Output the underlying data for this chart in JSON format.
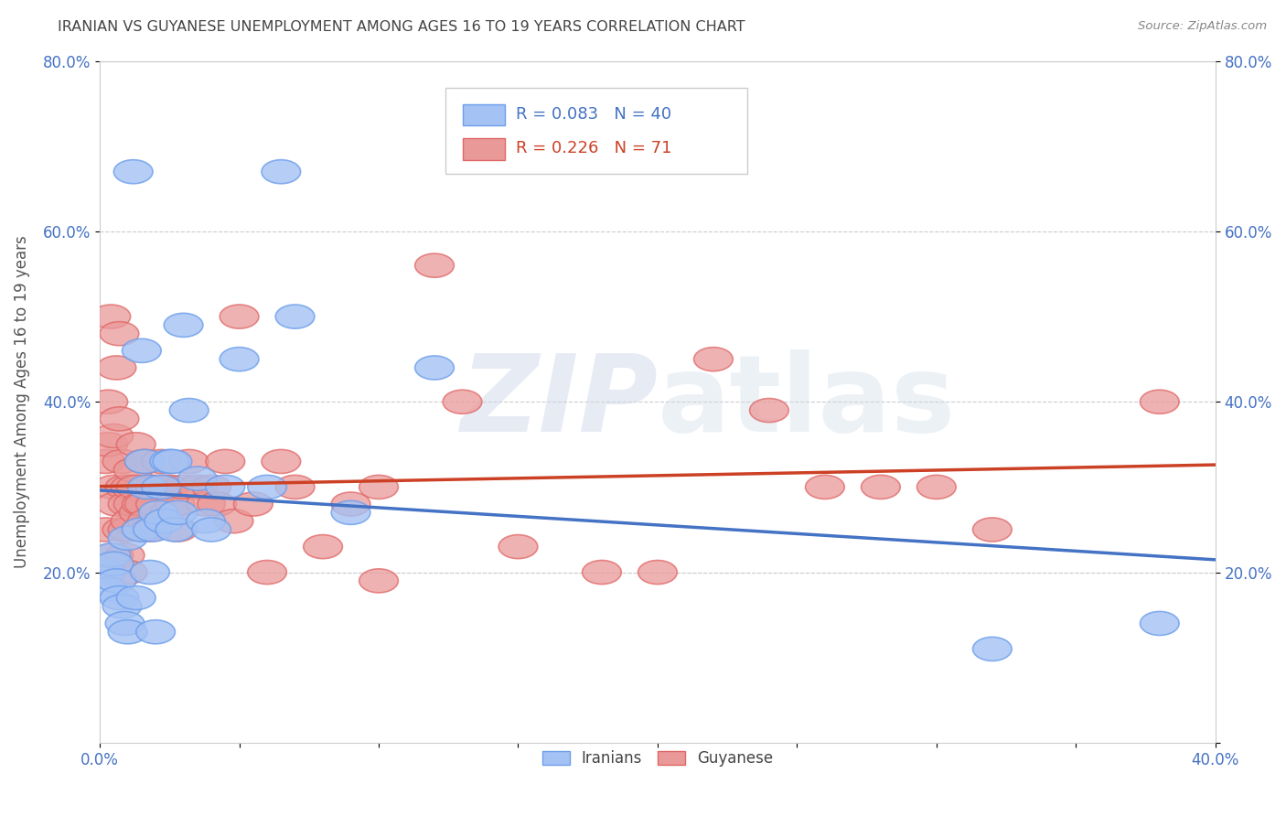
{
  "title": "IRANIAN VS GUYANESE UNEMPLOYMENT AMONG AGES 16 TO 19 YEARS CORRELATION CHART",
  "source": "Source: ZipAtlas.com",
  "ylabel": "Unemployment Among Ages 16 to 19 years",
  "watermark": "ZIPatlas",
  "xlim": [
    0.0,
    0.4
  ],
  "ylim": [
    0.0,
    0.8
  ],
  "xtick_positions": [
    0.0,
    0.05,
    0.1,
    0.15,
    0.2,
    0.25,
    0.3,
    0.35,
    0.4
  ],
  "xtick_labels": [
    "0.0%",
    "",
    "",
    "",
    "",
    "",
    "",
    "",
    "40.0%"
  ],
  "ytick_positions_left": [
    0.2,
    0.4,
    0.6,
    0.8
  ],
  "ytick_labels_left": [
    "20.0%",
    "40.0%",
    "60.0%",
    "80.0%"
  ],
  "ytick_positions_right": [
    0.0,
    0.2,
    0.4,
    0.6,
    0.8
  ],
  "ytick_labels_right": [
    "",
    "20.0%",
    "40.0%",
    "60.0%",
    "80.0%"
  ],
  "iranian_R": 0.083,
  "iranian_N": 40,
  "guyanese_R": 0.226,
  "guyanese_N": 71,
  "iranian_color": "#a4c2f4",
  "guyanese_color": "#ea9999",
  "iranian_edge_color": "#6d9eeb",
  "guyanese_edge_color": "#e06666",
  "iranian_line_color": "#4472c4",
  "guyanese_line_color": "#cc4125",
  "background_color": "#ffffff",
  "grid_color": "#cccccc",
  "title_color": "#444444",
  "axis_tick_color": "#4472c4",
  "iranians_x": [
    0.002,
    0.003,
    0.004,
    0.005,
    0.006,
    0.007,
    0.008,
    0.009,
    0.01,
    0.01,
    0.012,
    0.013,
    0.015,
    0.015,
    0.016,
    0.017,
    0.018,
    0.019,
    0.02,
    0.021,
    0.022,
    0.023,
    0.025,
    0.026,
    0.027,
    0.028,
    0.03,
    0.032,
    0.035,
    0.038,
    0.04,
    0.045,
    0.05,
    0.06,
    0.065,
    0.07,
    0.09,
    0.12,
    0.32,
    0.38
  ],
  "iranians_y": [
    0.2,
    0.18,
    0.22,
    0.21,
    0.19,
    0.17,
    0.16,
    0.14,
    0.13,
    0.24,
    0.67,
    0.17,
    0.46,
    0.25,
    0.33,
    0.3,
    0.2,
    0.25,
    0.13,
    0.27,
    0.3,
    0.26,
    0.33,
    0.33,
    0.25,
    0.27,
    0.49,
    0.39,
    0.31,
    0.26,
    0.25,
    0.3,
    0.45,
    0.3,
    0.67,
    0.5,
    0.27,
    0.44,
    0.11,
    0.14
  ],
  "guyanese_x": [
    0.001,
    0.002,
    0.002,
    0.003,
    0.003,
    0.004,
    0.005,
    0.005,
    0.005,
    0.006,
    0.006,
    0.007,
    0.007,
    0.008,
    0.008,
    0.009,
    0.009,
    0.01,
    0.01,
    0.01,
    0.011,
    0.011,
    0.012,
    0.012,
    0.013,
    0.013,
    0.014,
    0.015,
    0.015,
    0.016,
    0.016,
    0.017,
    0.018,
    0.018,
    0.02,
    0.02,
    0.022,
    0.023,
    0.025,
    0.025,
    0.027,
    0.028,
    0.03,
    0.032,
    0.035,
    0.038,
    0.04,
    0.042,
    0.045,
    0.048,
    0.05,
    0.055,
    0.06,
    0.065,
    0.07,
    0.08,
    0.09,
    0.1,
    0.1,
    0.12,
    0.13,
    0.15,
    0.18,
    0.2,
    0.22,
    0.24,
    0.26,
    0.28,
    0.3,
    0.32,
    0.38
  ],
  "guyanese_y": [
    0.2,
    0.33,
    0.25,
    0.4,
    0.35,
    0.5,
    0.36,
    0.3,
    0.22,
    0.28,
    0.44,
    0.48,
    0.38,
    0.33,
    0.25,
    0.3,
    0.22,
    0.28,
    0.25,
    0.2,
    0.3,
    0.26,
    0.32,
    0.28,
    0.35,
    0.3,
    0.27,
    0.28,
    0.25,
    0.33,
    0.28,
    0.26,
    0.3,
    0.25,
    0.3,
    0.28,
    0.33,
    0.3,
    0.3,
    0.27,
    0.28,
    0.25,
    0.3,
    0.33,
    0.3,
    0.28,
    0.3,
    0.28,
    0.33,
    0.26,
    0.5,
    0.28,
    0.2,
    0.33,
    0.3,
    0.23,
    0.28,
    0.3,
    0.19,
    0.56,
    0.4,
    0.23,
    0.2,
    0.2,
    0.45,
    0.39,
    0.3,
    0.3,
    0.3,
    0.25,
    0.4
  ]
}
